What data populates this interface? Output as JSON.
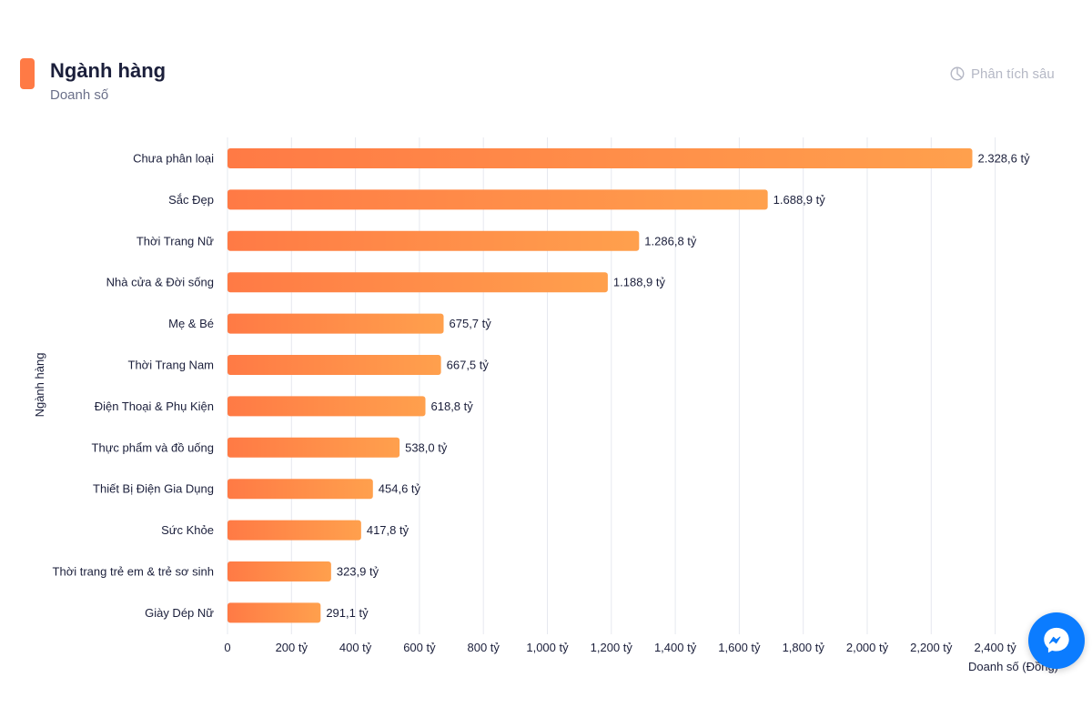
{
  "header": {
    "title": "Ngành hàng",
    "subtitle": "Doanh số",
    "deep_analysis_label": "Phân tích sâu"
  },
  "colors": {
    "accent": "#ff7a45",
    "bar_start": "#ff7a45",
    "bar_end": "#ffa04d",
    "messenger": "#0b7cff"
  },
  "chart_data": {
    "type": "bar",
    "orientation": "horizontal",
    "title": "Ngành hàng",
    "subtitle": "Doanh số",
    "xlabel": "Doanh số (Đồng)",
    "ylabel": "Ngành hàng",
    "xlim": [
      0,
      2500
    ],
    "unit": "tỷ",
    "categories": [
      "Chưa phân loại",
      "Sắc Đẹp",
      "Thời Trang Nữ",
      "Nhà cửa & Đời sống",
      "Mẹ & Bé",
      "Thời Trang Nam",
      "Điện Thoại & Phụ Kiện",
      "Thực phẩm và đồ uống",
      "Thiết Bị Điện Gia Dụng",
      "Sức Khỏe",
      "Thời trang trẻ em & trẻ sơ sinh",
      "Giày Dép Nữ"
    ],
    "values": [
      2328.6,
      1688.9,
      1286.8,
      1188.9,
      675.7,
      667.5,
      618.8,
      538.0,
      454.6,
      417.8,
      323.9,
      291.1
    ],
    "value_labels": [
      "2.328,6 tỷ",
      "1.688,9 tỷ",
      "1.286,8 tỷ",
      "1.188,9 tỷ",
      "675,7 tỷ",
      "667,5 tỷ",
      "618,8 tỷ",
      "538,0 tỷ",
      "454,6 tỷ",
      "417,8 tỷ",
      "323,9 tỷ",
      "291,1 tỷ"
    ],
    "ticks": [
      0,
      200,
      400,
      600,
      800,
      1000,
      1200,
      1400,
      1600,
      1800,
      2000,
      2200,
      2400
    ],
    "tick_labels": [
      "0",
      "200 tỷ",
      "400 tỷ",
      "600 tỷ",
      "800 tỷ",
      "1,000 tỷ",
      "1,200 tỷ",
      "1,400 tỷ",
      "1,600 tỷ",
      "1,800 tỷ",
      "2,000 tỷ",
      "2,200 tỷ",
      "2,400 tỷ"
    ],
    "grid": true
  }
}
